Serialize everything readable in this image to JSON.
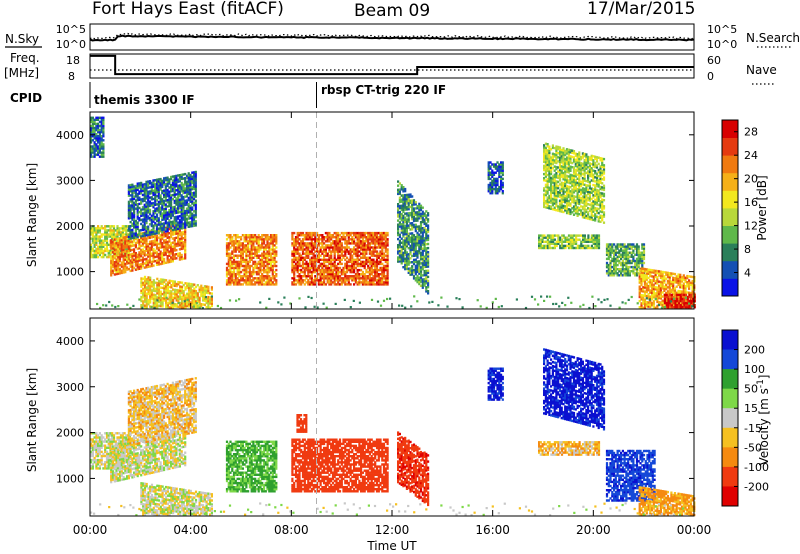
{
  "header": {
    "station": "Fort Hays East (fitACF)",
    "beam": "Beam 09",
    "date": "17/Mar/2015"
  },
  "summary": {
    "nsky_label": "N.Sky",
    "nsearch_label": "N.Search",
    "freq_label_line1": "Freq.",
    "freq_label_line2": "[MHz]",
    "nave_label": "Nave",
    "cpid_label": "CPID",
    "nsky_ticks": [
      "10^5",
      "10^0"
    ],
    "nsearch_ticks": [
      "10^5",
      "10^0"
    ],
    "freq_ticks": [
      "18",
      "8"
    ],
    "nave_ticks": [
      "60",
      "0"
    ],
    "modes": [
      {
        "label": "themis 3300 IF",
        "start_hour": 0
      },
      {
        "label": "rbsp CT-trig 220 IF",
        "start_hour": 9.0
      }
    ]
  },
  "chart_data": [
    {
      "type": "line",
      "title": "",
      "xlabel": "",
      "ylabel": "Freq. [MHz]",
      "ylim": [
        8,
        18
      ],
      "y2label": "Nave",
      "y2lim": [
        0,
        60
      ],
      "series": [
        {
          "name": "Freq.",
          "style": "solid",
          "x": [
            0,
            1.0,
            1.0,
            13.0,
            13.0,
            24
          ],
          "y": [
            17.2,
            17.2,
            9.6,
            9.6,
            12.6,
            12.6
          ]
        },
        {
          "name": "Nave",
          "style": "dotted",
          "axis": "right",
          "x": [
            0,
            24
          ],
          "y": [
            20,
            20
          ]
        }
      ]
    },
    {
      "type": "heatmap",
      "title": "",
      "xlabel": "Time UT",
      "ylabel": "Slant Range [km]",
      "x_ticks": [
        "00:00",
        "04:00",
        "08:00",
        "12:00",
        "16:00",
        "20:00",
        "00:00"
      ],
      "xlim_hours": [
        0,
        24
      ],
      "y_ticks": [
        1000,
        2000,
        3000,
        4000
      ],
      "ylim": [
        180,
        4500
      ],
      "colorbar_label": "Power [dB]",
      "colorbar_ticks": [
        4,
        8,
        12,
        16,
        20,
        24,
        28
      ],
      "colorbar_range": [
        0,
        30
      ],
      "colorscale": [
        "#0a12e6",
        "#1450b4",
        "#2a7f5a",
        "#5fb84a",
        "#b8d83a",
        "#f2e81e",
        "#f5b018",
        "#f07a10",
        "#e53a10",
        "#d80000"
      ],
      "regions": [
        {
          "t": [
            0.0,
            1.6
          ],
          "r": [
            1300,
            2000
          ],
          "v": 14
        },
        {
          "t": [
            0.0,
            0.5
          ],
          "r": [
            3500,
            4400
          ],
          "v": 6
        },
        {
          "t": [
            0.8,
            3.8
          ],
          "r": [
            900,
            1700
          ],
          "v": 22,
          "slope": 380
        },
        {
          "t": [
            1.5,
            4.2
          ],
          "r": [
            1700,
            2900
          ],
          "v": 6,
          "slope": 300
        },
        {
          "t": [
            2.0,
            4.8
          ],
          "r": [
            200,
            900
          ],
          "v": 18,
          "slope": -240
        },
        {
          "t": [
            5.4,
            7.4
          ],
          "r": [
            700,
            1800
          ],
          "v": 22
        },
        {
          "t": [
            8.0,
            11.8
          ],
          "r": [
            700,
            1850
          ],
          "v": 24
        },
        {
          "t": [
            12.2,
            13.4
          ],
          "r": [
            1200,
            3000
          ],
          "v": 8,
          "slope": -700
        },
        {
          "t": [
            15.8,
            16.4
          ],
          "r": [
            2700,
            3400
          ],
          "v": 5
        },
        {
          "t": [
            17.8,
            20.2
          ],
          "r": [
            1500,
            1800
          ],
          "v": 12
        },
        {
          "t": [
            18.0,
            20.4
          ],
          "r": [
            2400,
            3800
          ],
          "v": 13,
          "slope": -350
        },
        {
          "t": [
            20.5,
            22.0
          ],
          "r": [
            900,
            1600
          ],
          "v": 10
        },
        {
          "t": [
            21.8,
            24.0
          ],
          "r": [
            200,
            1100
          ],
          "v": 20,
          "slope": -200
        },
        {
          "t": [
            22.8,
            24.0
          ],
          "r": [
            200,
            500
          ],
          "v": 28
        }
      ]
    },
    {
      "type": "heatmap",
      "title": "",
      "xlabel": "Time UT",
      "ylabel": "Slant Range [km]",
      "x_ticks": [
        "00:00",
        "04:00",
        "08:00",
        "12:00",
        "16:00",
        "20:00",
        "00:00"
      ],
      "xlim_hours": [
        0,
        24
      ],
      "y_ticks": [
        1000,
        2000,
        3000,
        4000
      ],
      "ylim": [
        180,
        4500
      ],
      "colorbar_label": "Velocity [m s^-1]",
      "colorbar_ticks": [
        200,
        100,
        50,
        15,
        -15,
        -50,
        -100,
        -200
      ],
      "colorbar_range": [
        -250,
        250
      ],
      "colorscale_bins": [
        {
          "min": -9999,
          "max": -200,
          "color": "#e00000"
        },
        {
          "min": -200,
          "max": -100,
          "color": "#f03a10"
        },
        {
          "min": -100,
          "max": -50,
          "color": "#f58a10"
        },
        {
          "min": -50,
          "max": -15,
          "color": "#f5c020"
        },
        {
          "min": -15,
          "max": 15,
          "color": "#c8c8c8"
        },
        {
          "min": 15,
          "max": 50,
          "color": "#7ed848"
        },
        {
          "min": 50,
          "max": 100,
          "color": "#2fa02f"
        },
        {
          "min": 100,
          "max": 200,
          "color": "#1448d8"
        },
        {
          "min": 200,
          "max": 9999,
          "color": "#0a10d0"
        }
      ],
      "regions": [
        {
          "t": [
            0.0,
            1.6
          ],
          "r": [
            1200,
            2000
          ],
          "v": 0
        },
        {
          "t": [
            0.8,
            3.8
          ],
          "r": [
            900,
            1700
          ],
          "v": 0,
          "slope": 380
        },
        {
          "t": [
            2.0,
            4.8
          ],
          "r": [
            200,
            900
          ],
          "v": 0,
          "slope": -240
        },
        {
          "t": [
            1.5,
            4.2
          ],
          "r": [
            1700,
            2900
          ],
          "v": -30,
          "slope": 300
        },
        {
          "t": [
            5.4,
            7.4
          ],
          "r": [
            700,
            1800
          ],
          "v": 60
        },
        {
          "t": [
            8.0,
            11.8
          ],
          "r": [
            700,
            1850
          ],
          "v": -150
        },
        {
          "t": [
            12.2,
            13.4
          ],
          "r": [
            900,
            2000
          ],
          "v": -180,
          "slope": -500
        },
        {
          "t": [
            8.2,
            8.6
          ],
          "r": [
            2000,
            2400
          ],
          "v": -150
        },
        {
          "t": [
            15.8,
            16.4
          ],
          "r": [
            2700,
            3400
          ],
          "v": 220
        },
        {
          "t": [
            17.8,
            20.2
          ],
          "r": [
            1500,
            1800
          ],
          "v": -40
        },
        {
          "t": [
            18.0,
            20.4
          ],
          "r": [
            2400,
            3800
          ],
          "v": 220,
          "slope": -350
        },
        {
          "t": [
            20.5,
            22.4
          ],
          "r": [
            500,
            1600
          ],
          "v": 180
        },
        {
          "t": [
            21.8,
            24.0
          ],
          "r": [
            200,
            800
          ],
          "v": -60,
          "slope": -200
        }
      ]
    }
  ]
}
